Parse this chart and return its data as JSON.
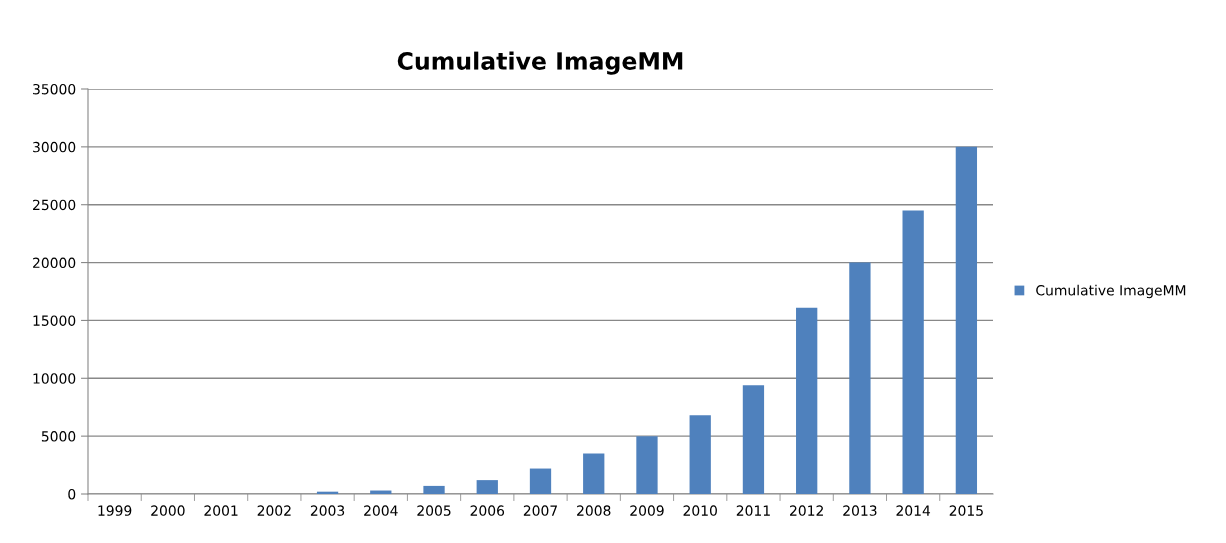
{
  "chart_data": {
    "type": "bar",
    "title": "Cumulative ImageMM",
    "categories": [
      "1999",
      "2000",
      "2001",
      "2002",
      "2003",
      "2004",
      "2005",
      "2006",
      "2007",
      "2008",
      "2009",
      "2010",
      "2011",
      "2012",
      "2013",
      "2014",
      "2015"
    ],
    "series": [
      {
        "name": "Cumulative ImageMM",
        "color": "#4f81bd",
        "values": [
          0,
          0,
          0,
          0,
          200,
          300,
          700,
          1200,
          2200,
          3500,
          5000,
          6800,
          9400,
          16100,
          20000,
          24500,
          30000
        ]
      }
    ],
    "ylim": [
      0,
      35000
    ],
    "yticks": [
      0,
      5000,
      10000,
      15000,
      20000,
      25000,
      30000,
      35000
    ],
    "grid": "y",
    "legend": "right"
  }
}
